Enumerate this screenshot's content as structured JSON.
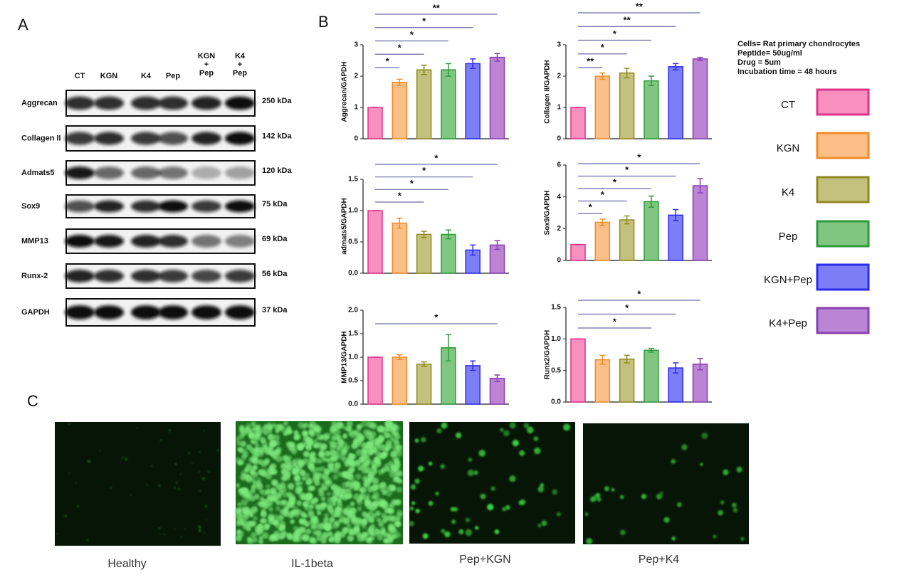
{
  "panel_labels": [
    "A",
    "B",
    "C"
  ],
  "blot": {
    "lanes": [
      "CT",
      "KGN",
      "K4",
      "Pep",
      [
        "KGN",
        "+",
        "Pep"
      ],
      [
        "K4",
        "+",
        "Pep"
      ]
    ],
    "rows": [
      {
        "label": "Aggrecan",
        "size": "250 kDa"
      },
      {
        "label": "Collagen II",
        "size": "142 kDa"
      },
      {
        "label": "Admats5",
        "size": "120 kDa"
      },
      {
        "label": "Sox9",
        "size": "75 kDa"
      },
      {
        "label": "MMP13",
        "size": "69 kDa"
      },
      {
        "label": "Runx-2",
        "size": "56 kDa"
      },
      {
        "label": "GAPDH",
        "size": "37 kDa"
      }
    ]
  },
  "chart_data": [
    {
      "type": "bar",
      "ylabel": "Aggrecan/GAPDH",
      "values": [
        1.0,
        1.8,
        2.2,
        2.2,
        2.4,
        2.6
      ],
      "errors": [
        0,
        0.1,
        0.15,
        0.2,
        0.15,
        0.12
      ],
      "ylim": [
        0,
        3
      ],
      "yticks": [
        0,
        1,
        2,
        3
      ],
      "annotations": [
        {
          "text": "*",
          "to": "KGN"
        },
        {
          "text": "*",
          "to": "K4"
        },
        {
          "text": "*",
          "to": "Pep"
        },
        {
          "text": "*",
          "to": "KGN+Pep"
        },
        {
          "text": "**",
          "to": "K4+Pep"
        }
      ]
    },
    {
      "type": "bar",
      "ylabel": "Collagen II/GAPDH",
      "values": [
        1.0,
        2.0,
        2.1,
        1.85,
        2.3,
        2.55
      ],
      "errors": [
        0,
        0.1,
        0.15,
        0.15,
        0.1,
        0.05
      ],
      "ylim": [
        0,
        3
      ],
      "yticks": [
        0,
        1,
        2,
        3
      ],
      "annotations": [
        {
          "text": "**",
          "to": "KGN"
        },
        {
          "text": "*",
          "to": "K4"
        },
        {
          "text": "*",
          "to": "Pep"
        },
        {
          "text": "**",
          "to": "KGN+Pep"
        },
        {
          "text": "**",
          "to": "K4+Pep"
        }
      ]
    },
    {
      "type": "bar",
      "ylabel": "admats5/GAPDH",
      "values": [
        1.0,
        0.8,
        0.62,
        0.62,
        0.37,
        0.45
      ],
      "errors": [
        0,
        0.08,
        0.05,
        0.07,
        0.08,
        0.07
      ],
      "ylim": [
        0,
        1.5
      ],
      "yticks": [
        {
          "value": 0,
          "label": "0.0"
        },
        {
          "value": 0.5,
          "label": "0.5"
        },
        {
          "value": 1,
          "label": "1.0"
        },
        {
          "value": 1.5,
          "label": "1.5"
        }
      ],
      "annotations": [
        {
          "text": "*",
          "to": "K4"
        },
        {
          "text": "*",
          "to": "Pep"
        },
        {
          "text": "*",
          "to": "KGN+Pep"
        },
        {
          "text": "*",
          "to": "K4+Pep"
        }
      ]
    },
    {
      "type": "bar",
      "ylabel": "Sox9/GAPDH",
      "values": [
        1.0,
        2.4,
        2.55,
        3.7,
        2.85,
        4.7
      ],
      "errors": [
        0,
        0.2,
        0.25,
        0.35,
        0.35,
        0.45
      ],
      "ylim": [
        0,
        6
      ],
      "yticks": [
        0,
        2,
        4,
        6
      ],
      "annotations": [
        {
          "text": "*",
          "to": "KGN"
        },
        {
          "text": "*",
          "to": "K4"
        },
        {
          "text": "*",
          "to": "Pep"
        },
        {
          "text": "*",
          "to": "KGN+Pep"
        },
        {
          "text": "*",
          "to": "K4+Pep"
        }
      ]
    },
    {
      "type": "bar",
      "ylabel": "MMP13/GAPDH",
      "values": [
        1.0,
        1.0,
        0.85,
        1.2,
        0.82,
        0.55
      ],
      "errors": [
        0,
        0.05,
        0.05,
        0.28,
        0.1,
        0.07
      ],
      "ylim": [
        0,
        2
      ],
      "yticks": [
        {
          "value": 0,
          "label": "0.0"
        },
        {
          "value": 0.5,
          "label": "0.5"
        },
        {
          "value": 1,
          "label": "1.0"
        },
        {
          "value": 1.5,
          "label": "1.5"
        },
        {
          "value": 2,
          "label": "2.0"
        }
      ],
      "annotations": [
        {
          "text": "*",
          "to": "K4+Pep"
        }
      ]
    },
    {
      "type": "bar",
      "ylabel": "Runx2/GAPDH",
      "values": [
        1.0,
        0.67,
        0.68,
        0.82,
        0.54,
        0.6
      ],
      "errors": [
        0,
        0.07,
        0.06,
        0.03,
        0.08,
        0.09
      ],
      "ylim": [
        0,
        1.5
      ],
      "yticks": [
        {
          "value": 0,
          "label": "0.0"
        },
        {
          "value": 0.5,
          "label": "0.5"
        },
        {
          "value": 1,
          "label": "1.0"
        },
        {
          "value": 1.5,
          "label": "1.5"
        }
      ],
      "annotations": [
        {
          "text": "*",
          "to": "Pep"
        },
        {
          "text": "*",
          "to": "KGN+Pep"
        },
        {
          "text": "*",
          "to": "K4+Pep"
        }
      ]
    }
  ],
  "groups": [
    {
      "name": "CT",
      "color": "#f78fbf",
      "edge": "#e0338a"
    },
    {
      "name": "KGN",
      "color": "#fbbf87",
      "edge": "#f08c28"
    },
    {
      "name": "K4",
      "color": "#c4c07e",
      "edge": "#8f8a1f"
    },
    {
      "name": "Pep",
      "color": "#80c680",
      "edge": "#2e9a3a"
    },
    {
      "name": "KGN+Pep",
      "color": "#7d7df5",
      "edge": "#2b2bf0"
    },
    {
      "name": "K4+Pep",
      "color": "#bb84d5",
      "edge": "#8a3fb0"
    }
  ],
  "info": [
    "Cells= Rat primary chondrocytes",
    "Peptide= 50ug/ml",
    "Drug = 5um",
    "Incubation time = 48 hours"
  ],
  "images": [
    {
      "caption": "Healthy"
    },
    {
      "caption": "IL-1beta"
    },
    {
      "caption": "Pep+KGN"
    },
    {
      "caption": "Pep+K4"
    }
  ]
}
